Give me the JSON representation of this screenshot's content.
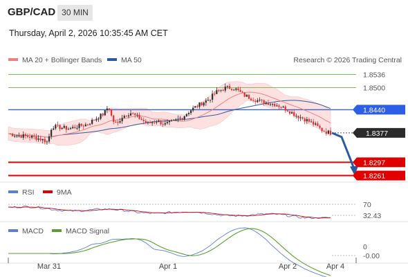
{
  "header": {
    "symbol": "GBP/CAD",
    "timeframe": "30 MIN",
    "timestamp": "Thursday, April 2, 2026 10:35:45 AM CET"
  },
  "legend": {
    "ma20": "MA 20 + Bollinger Bands",
    "ma50": "MA 50",
    "credit": "Research © 2026 Trading Central"
  },
  "levels": [
    {
      "value": 1.8536,
      "label": "1.8536",
      "kind": "resistance",
      "color": "#6fb33f"
    },
    {
      "value": 1.85,
      "label": "1.8500",
      "kind": "resistance",
      "color": "#6fb33f"
    },
    {
      "value": 1.844,
      "label": "1.8440",
      "kind": "pivot",
      "color": "#3366cc"
    },
    {
      "value": 1.8297,
      "label": "1.8297",
      "kind": "support",
      "color": "#e00000"
    },
    {
      "value": 1.8261,
      "label": "1.8261",
      "kind": "support",
      "color": "#e00000"
    }
  ],
  "last_price": {
    "value": 1.8377,
    "label": "1.8377"
  },
  "rsi_panel": {
    "rsi_label": "RSI",
    "ma_label": "9MA",
    "level_label": "70",
    "value_label": "32.43",
    "last_value": 32.43
  },
  "macd_panel": {
    "macd_label": "MACD",
    "signal_label": "MACD Signal",
    "zero_label": "0",
    "value_label": "-0.00"
  },
  "x_axis": {
    "ticks": [
      "Mar 31",
      "Apr 1",
      "Apr 2",
      "Apr 4"
    ]
  },
  "colors": {
    "ma20": "#f08080",
    "ma50": "#2c5a9e",
    "rsi": "#5b7fd6",
    "rsi_ma": "#e00000",
    "macd": "#5b7fd6",
    "macd_signal": "#5aa02c",
    "bull": "#2e2e2e",
    "bear": "#e03030",
    "forecast_arrow": "#2c5a9e"
  },
  "chart_data": {
    "type": "candlestick",
    "title": "GBP/CAD",
    "ylim": [
      1.8245,
      1.8565
    ],
    "close_path": [
      [
        0,
        1.8375
      ],
      [
        2,
        1.837
      ],
      [
        4,
        1.8368
      ],
      [
        6,
        1.8365
      ],
      [
        8,
        1.8358
      ],
      [
        9,
        1.8352
      ],
      [
        10,
        1.8395
      ],
      [
        12,
        1.8392
      ],
      [
        14,
        1.8388
      ],
      [
        16,
        1.8395
      ],
      [
        18,
        1.84
      ],
      [
        20,
        1.8415
      ],
      [
        22,
        1.843
      ],
      [
        23,
        1.845
      ],
      [
        24,
        1.841
      ],
      [
        25,
        1.84
      ],
      [
        26,
        1.842
      ],
      [
        28,
        1.8432
      ],
      [
        30,
        1.8418
      ],
      [
        32,
        1.8402
      ],
      [
        34,
        1.841
      ],
      [
        36,
        1.84
      ],
      [
        38,
        1.8408
      ],
      [
        40,
        1.842
      ],
      [
        42,
        1.844
      ],
      [
        44,
        1.8455
      ],
      [
        46,
        1.8468
      ],
      [
        48,
        1.849
      ],
      [
        50,
        1.85
      ],
      [
        52,
        1.8498
      ],
      [
        54,
        1.848
      ],
      [
        56,
        1.847
      ],
      [
        58,
        1.8462
      ],
      [
        60,
        1.8458
      ],
      [
        62,
        1.8452
      ],
      [
        64,
        1.844
      ],
      [
        66,
        1.8425
      ],
      [
        68,
        1.8415
      ],
      [
        70,
        1.8402
      ],
      [
        72,
        1.8385
      ],
      [
        73,
        1.838
      ],
      [
        74,
        1.8377
      ]
    ],
    "forecast": [
      [
        74,
        1.8377
      ],
      [
        82,
        1.8261
      ]
    ]
  }
}
